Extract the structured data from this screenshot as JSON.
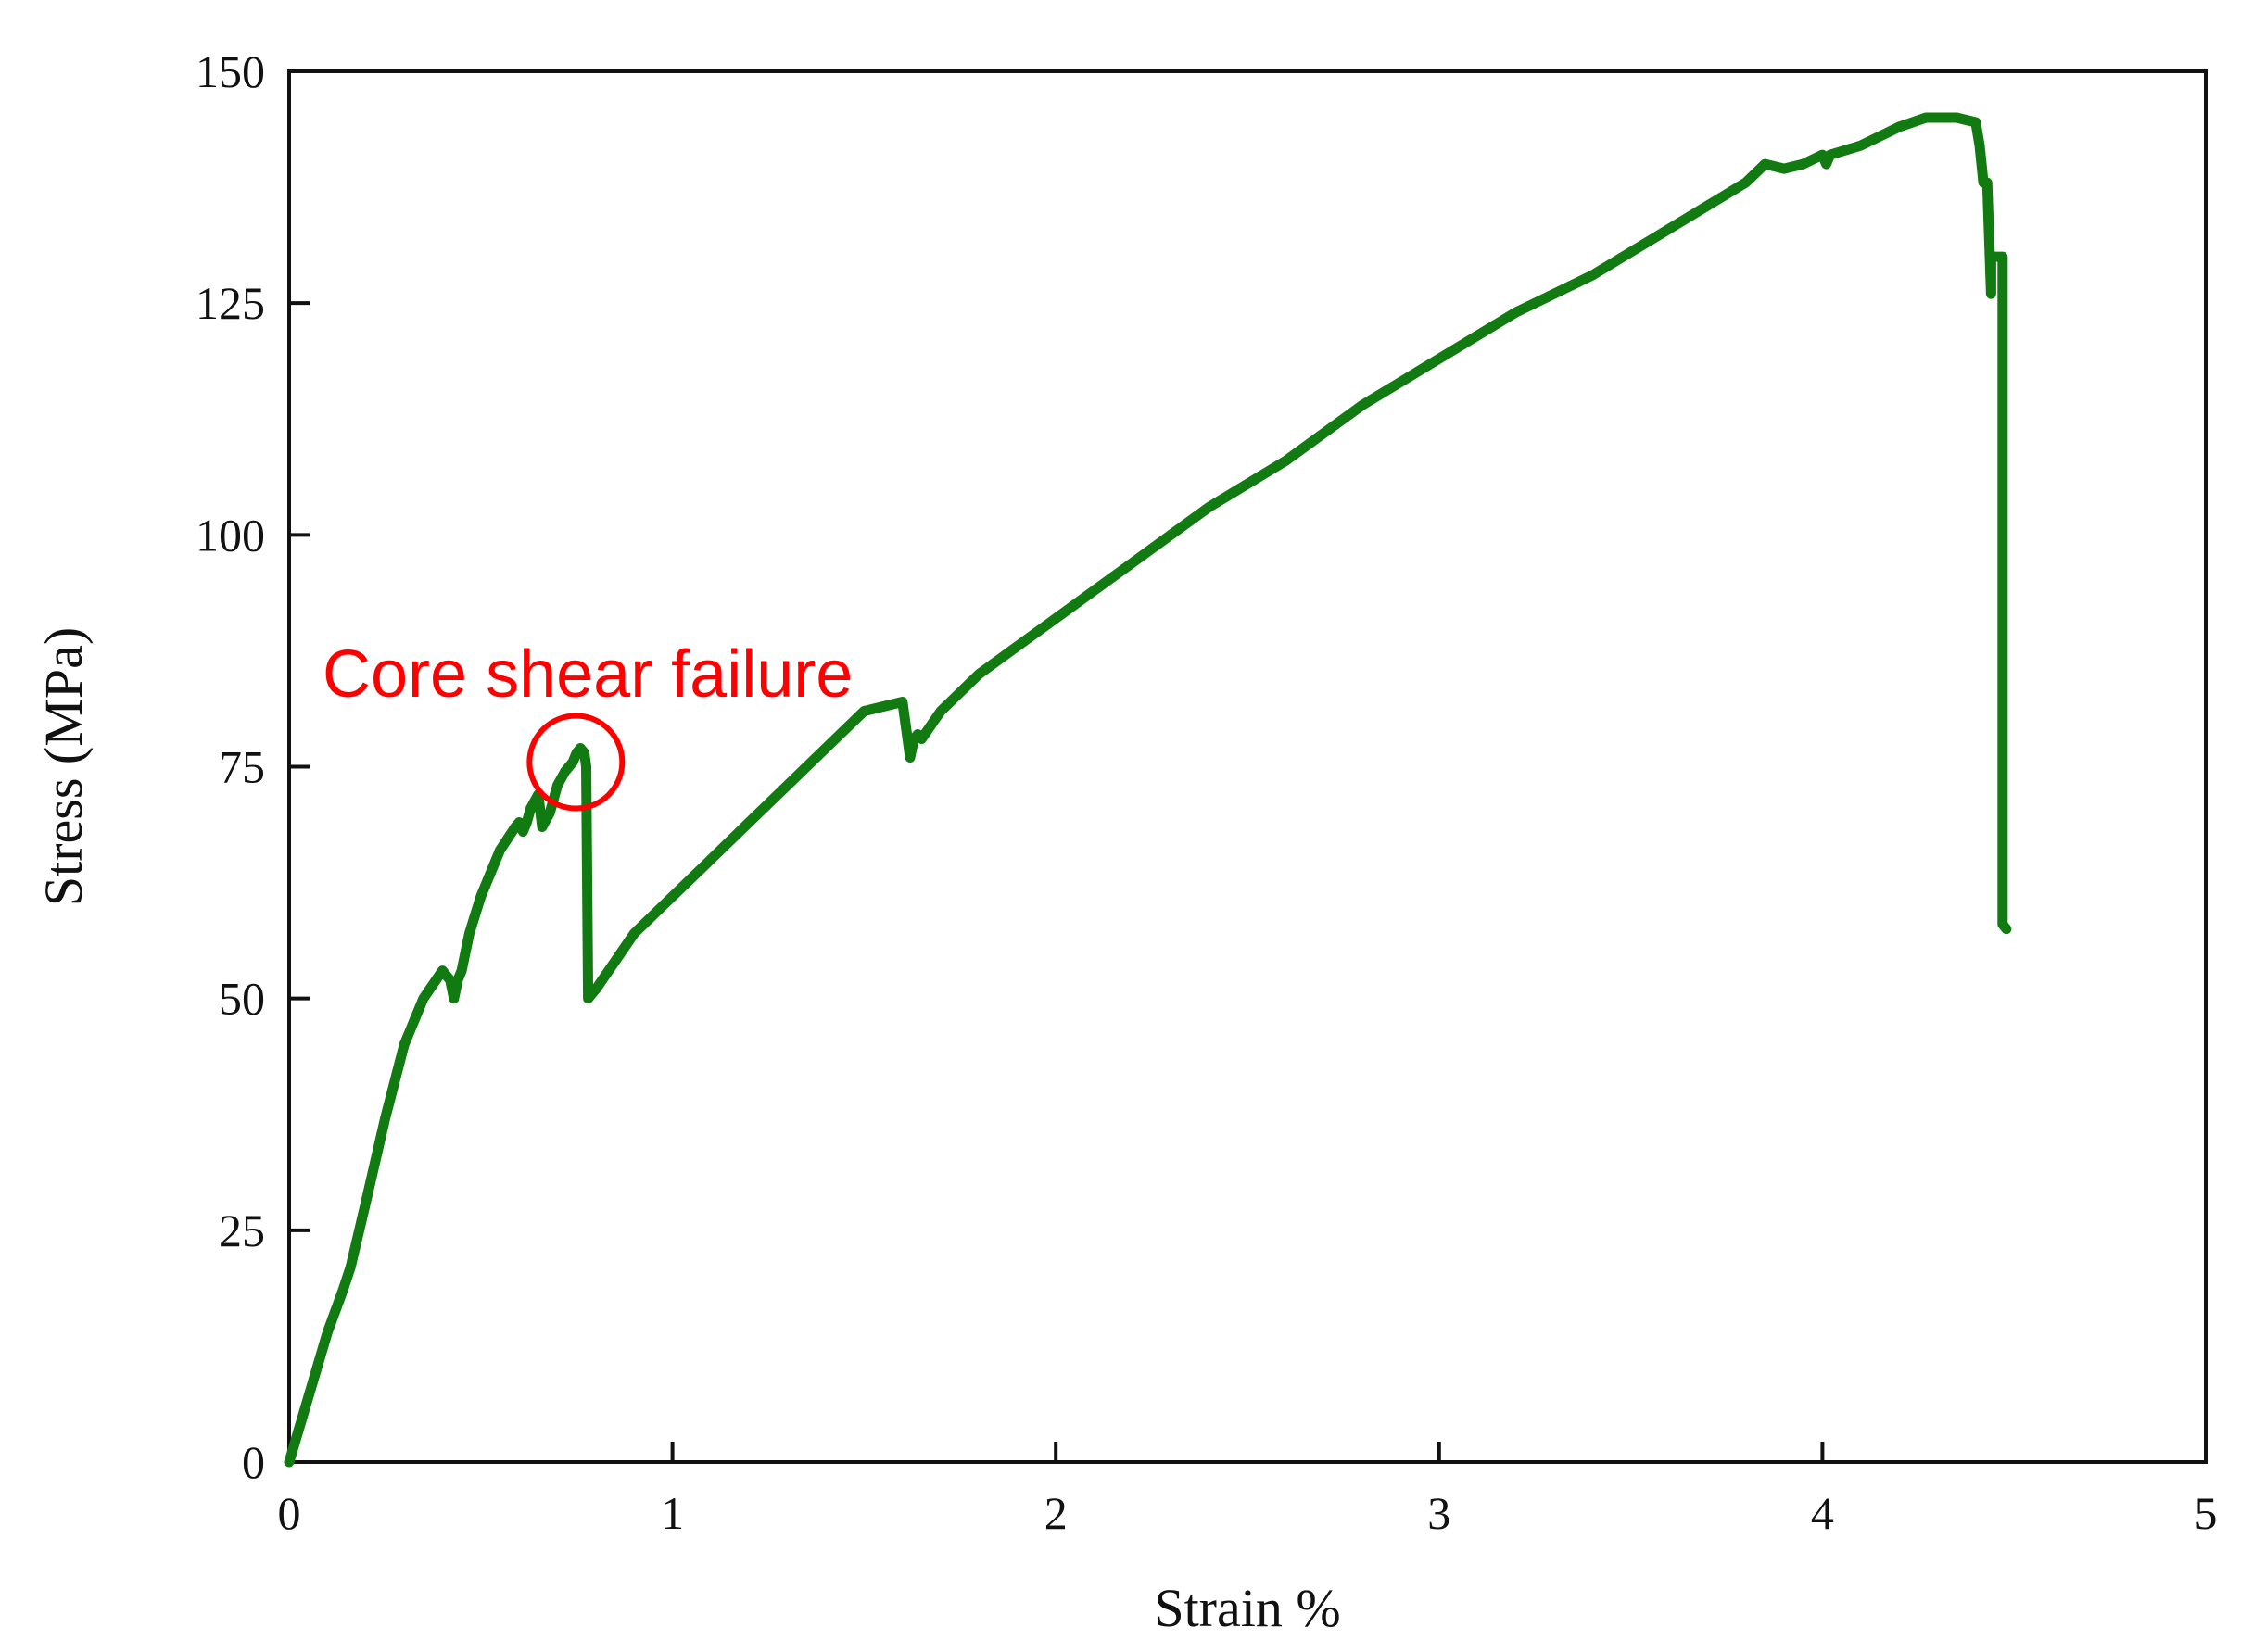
{
  "chart_data": {
    "type": "line",
    "title": "",
    "xlabel": "Strain %",
    "ylabel": "Stress (MPa)",
    "xlim": [
      0,
      5
    ],
    "ylim": [
      0,
      150
    ],
    "xticks": [
      0,
      1,
      2,
      3,
      4,
      5
    ],
    "yticks": [
      0,
      25,
      50,
      75,
      100,
      125,
      150
    ],
    "grid": false,
    "legend": "none",
    "series": [
      {
        "color": "#117a11",
        "x": [
          0,
          0.05,
          0.1,
          0.14,
          0.16,
          0.2,
          0.25,
          0.3,
          0.35,
          0.4,
          0.42,
          0.43,
          0.44,
          0.45,
          0.47,
          0.5,
          0.55,
          0.59,
          0.6,
          0.61,
          0.62,
          0.63,
          0.65,
          0.66,
          0.68,
          0.7,
          0.72,
          0.74,
          0.75,
          0.76,
          0.77,
          0.775,
          0.78,
          0.79,
          0.8,
          0.85,
          0.9,
          1.0,
          1.1,
          1.2,
          1.3,
          1.4,
          1.5,
          1.6,
          1.62,
          1.63,
          1.64,
          1.65,
          1.7,
          1.8,
          1.9,
          2.0,
          2.2,
          2.4,
          2.6,
          2.8,
          3.0,
          3.2,
          3.4,
          3.6,
          3.8,
          3.85,
          3.9,
          3.95,
          4.0,
          4.01,
          4.02,
          4.1,
          4.2,
          4.27,
          4.3,
          4.35,
          4.4,
          4.41,
          4.42,
          4.43,
          4.44,
          4.44,
          4.45,
          4.47,
          4.47,
          4.48
        ],
        "y": [
          0,
          7,
          14,
          18.5,
          21,
          28,
          37,
          45,
          50,
          53,
          52,
          50,
          52,
          53,
          57,
          61,
          66,
          68.5,
          69,
          68,
          69,
          70.5,
          72,
          68.5,
          70,
          73,
          74.5,
          75.5,
          76.5,
          77,
          76.5,
          75,
          50,
          50.5,
          51,
          54,
          57,
          61,
          65,
          69,
          73,
          77,
          81,
          82,
          76,
          78,
          78.5,
          78,
          81,
          85,
          88,
          91,
          97,
          103,
          108,
          114,
          119,
          124,
          128,
          133,
          138,
          140,
          139.5,
          140,
          141,
          140,
          141,
          142,
          144,
          145,
          145,
          145,
          144.5,
          142,
          138,
          138,
          126,
          130,
          130,
          130,
          58,
          57.5
        ]
      }
    ],
    "annotations": [
      {
        "text": "Core shear failure",
        "color": "#ff0000",
        "x": 0.76,
        "y": 76.5,
        "marker": "circle"
      }
    ]
  }
}
